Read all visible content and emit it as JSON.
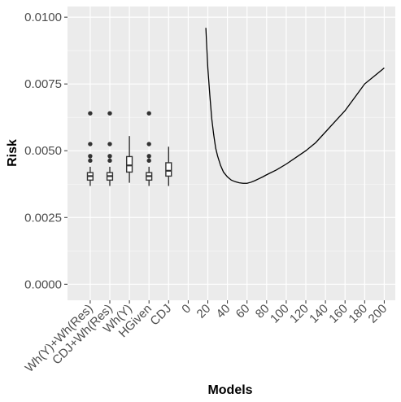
{
  "chart_data": {
    "type": "box+line",
    "xlabel": "Models",
    "ylabel": "Risk",
    "ylim": [
      -0.0006,
      0.0104
    ],
    "y_ticks": [
      0.0,
      0.0025,
      0.005,
      0.0075,
      0.01
    ],
    "y_tick_labels": [
      "0.0000",
      "0.0025",
      "0.0050",
      "0.0075",
      "0.0100"
    ],
    "x_tick_labels": [
      "Wh(Y)+Wh(Res)",
      "CDJ+Wh(Res)",
      "Wh(Y)",
      "HGiven",
      "CDJ",
      "0",
      "20",
      "40",
      "60",
      "80",
      "100",
      "120",
      "140",
      "160",
      "180",
      "200"
    ],
    "grid": true,
    "colors": {
      "panel": "#ebebeb",
      "grid_major": "#ffffff",
      "line": "#000000",
      "tick_text": "#4d4d4d"
    },
    "boxplots": [
      {
        "category": "Wh(Y)+Wh(Res)",
        "q1": 0.0039,
        "median": 0.00405,
        "q3": 0.00418,
        "whisker_low": 0.00368,
        "whisker_high": 0.0044,
        "outliers": [
          0.00463,
          0.0048,
          0.00525,
          0.0064
        ]
      },
      {
        "category": "CDJ+Wh(Res)",
        "q1": 0.0039,
        "median": 0.00405,
        "q3": 0.00418,
        "whisker_low": 0.00368,
        "whisker_high": 0.0044,
        "outliers": [
          0.00463,
          0.0048,
          0.00525,
          0.0064
        ]
      },
      {
        "category": "Wh(Y)",
        "q1": 0.0042,
        "median": 0.00445,
        "q3": 0.00478,
        "whisker_low": 0.0038,
        "whisker_high": 0.00555,
        "outliers": []
      },
      {
        "category": "HGiven",
        "q1": 0.0039,
        "median": 0.00405,
        "q3": 0.00418,
        "whisker_low": 0.00368,
        "whisker_high": 0.0044,
        "outliers": [
          0.00463,
          0.0048,
          0.00525,
          0.0064
        ]
      },
      {
        "category": "CDJ",
        "q1": 0.00405,
        "median": 0.00425,
        "q3": 0.00455,
        "whisker_low": 0.00368,
        "whisker_high": 0.00515,
        "outliers": []
      }
    ],
    "line": {
      "x": [
        18,
        20,
        22,
        24,
        26,
        28,
        30,
        33,
        36,
        40,
        44,
        48,
        52,
        56,
        60,
        64,
        68,
        72,
        76,
        80,
        90,
        100,
        110,
        120,
        130,
        140,
        150,
        160,
        170,
        180,
        190,
        200
      ],
      "y": [
        0.0096,
        0.0081,
        0.0071,
        0.0062,
        0.0056,
        0.0051,
        0.0048,
        0.00445,
        0.0042,
        0.00402,
        0.0039,
        0.00384,
        0.0038,
        0.00378,
        0.00378,
        0.00382,
        0.00388,
        0.00395,
        0.00402,
        0.0041,
        0.00428,
        0.0045,
        0.00475,
        0.005,
        0.0053,
        0.0057,
        0.0061,
        0.0065,
        0.007,
        0.0075,
        0.0078,
        0.0081
      ]
    }
  }
}
